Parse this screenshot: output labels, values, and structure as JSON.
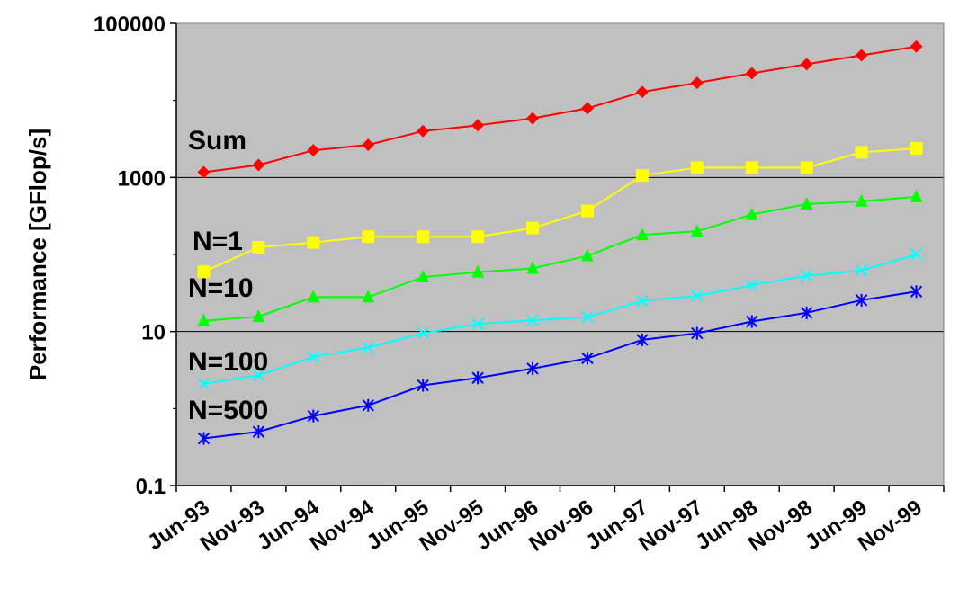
{
  "chart_data": {
    "type": "line",
    "title": "",
    "xlabel": "",
    "ylabel": "Performance [GFlop/s]",
    "yscale": "log",
    "ylim": [
      0.1,
      100000
    ],
    "yticks": [
      "0.1",
      "10",
      "1000",
      "100000"
    ],
    "categories": [
      "Jun-93",
      "Nov-93",
      "Jun-94",
      "Nov-94",
      "Jun-95",
      "Nov-95",
      "Jun-96",
      "Nov-96",
      "Jun-97",
      "Nov-97",
      "Jun-98",
      "Nov-98",
      "Jun-99",
      "Nov-99"
    ],
    "grid": true,
    "plot_background": "#c0c0c0",
    "series": [
      {
        "name": "Sum",
        "color": "#ff0000",
        "marker": "diamond",
        "values": [
          1170,
          1450,
          2250,
          2650,
          4000,
          4750,
          5850,
          7900,
          12900,
          16900,
          22500,
          29500,
          38500,
          50000
        ]
      },
      {
        "name": "N=1",
        "color": "#ffff00",
        "marker": "square",
        "values": [
          59.7,
          124,
          143,
          170,
          170,
          170,
          220,
          368,
          1060,
          1340,
          1340,
          1340,
          2120,
          2380
        ]
      },
      {
        "name": "N=10",
        "color": "#00ff00",
        "marker": "triangle",
        "values": [
          13.8,
          15.6,
          28,
          28,
          51,
          59,
          66,
          96,
          180,
          200,
          330,
          450,
          490,
          560
        ]
      },
      {
        "name": "N=100",
        "color": "#00ffff",
        "marker": "x",
        "values": [
          2.1,
          2.7,
          4.7,
          6.2,
          9.5,
          12.5,
          14,
          15.3,
          25,
          29,
          40,
          53,
          62,
          100
        ]
      },
      {
        "name": "N=500",
        "color": "#0000ff",
        "marker": "star",
        "values": [
          0.41,
          0.5,
          0.8,
          1.1,
          2,
          2.5,
          3.3,
          4.5,
          7.8,
          9.5,
          13.5,
          17.5,
          25.5,
          33
        ]
      }
    ]
  }
}
